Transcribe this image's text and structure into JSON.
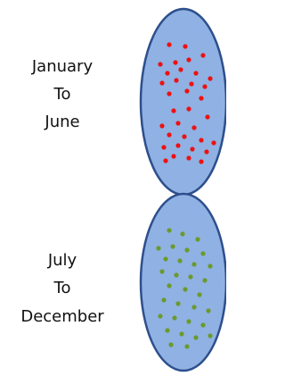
{
  "top_group": {
    "lines": [
      "January",
      "To",
      "June"
    ]
  },
  "bottom_group": {
    "lines": [
      "July",
      "To",
      "December"
    ]
  }
}
